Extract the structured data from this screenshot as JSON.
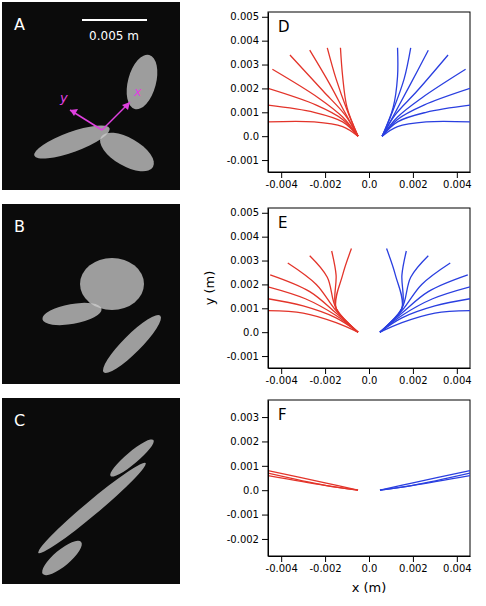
{
  "photos": [
    {
      "label": "A",
      "scale_bar": "0.005 m",
      "axis_labels": [
        "y",
        "x"
      ]
    },
    {
      "label": "B"
    },
    {
      "label": "C"
    }
  ],
  "chart_data": [
    {
      "type": "line",
      "panel": "D",
      "xlim": [
        -0.0046,
        0.0046
      ],
      "ylim": [
        -0.0015,
        0.0052
      ],
      "xticks": [
        -0.004,
        -0.002,
        {
          "value": 0,
          "label": "0.0"
        },
        0.002,
        0.004
      ],
      "yticks": [
        -0.001,
        {
          "value": 0,
          "label": "0.0"
        },
        0.001,
        0.002,
        0.003,
        0.004,
        0.005
      ],
      "series": [
        {
          "color": "#e3342a",
          "x": [
            -0.0005,
            -0.0012,
            -0.0025,
            -0.0046
          ],
          "values": [
            0.0,
            0.0004,
            0.0006,
            0.0006
          ]
        },
        {
          "color": "#e3342a",
          "x": [
            -0.0005,
            -0.0012,
            -0.0025,
            -0.0046
          ],
          "values": [
            0.0,
            0.0006,
            0.001,
            0.0013
          ]
        },
        {
          "color": "#e3342a",
          "x": [
            -0.0005,
            -0.0012,
            -0.0024,
            -0.0046
          ],
          "values": [
            0.0,
            0.0007,
            0.0013,
            0.002
          ]
        },
        {
          "color": "#e3342a",
          "x": [
            -0.0005,
            -0.0012,
            -0.0023,
            -0.0044
          ],
          "values": [
            0.0,
            0.0008,
            0.0016,
            0.0028
          ]
        },
        {
          "color": "#e3342a",
          "x": [
            -0.0005,
            -0.0011,
            -0.0021,
            -0.0036
          ],
          "values": [
            0.0,
            0.0009,
            0.0019,
            0.0034
          ]
        },
        {
          "color": "#e3342a",
          "x": [
            -0.0005,
            -0.0011,
            -0.0018,
            -0.0027
          ],
          "values": [
            0.0,
            0.001,
            0.0022,
            0.0036
          ]
        },
        {
          "color": "#e3342a",
          "x": [
            -0.0005,
            -0.001,
            -0.0015,
            -0.0019
          ],
          "values": [
            0.0,
            0.0011,
            0.0024,
            0.0037
          ]
        },
        {
          "color": "#e3342a",
          "x": [
            -0.0005,
            -0.001,
            -0.0012,
            -0.0013
          ],
          "values": [
            0.0,
            0.0012,
            0.0025,
            0.0037
          ]
        },
        {
          "color": "#2a3fe0",
          "x": [
            0.0006,
            0.0013,
            0.0026,
            0.0046
          ],
          "values": [
            0.0,
            0.0004,
            0.0006,
            0.0006
          ]
        },
        {
          "color": "#2a3fe0",
          "x": [
            0.0006,
            0.0013,
            0.0026,
            0.0046
          ],
          "values": [
            0.0,
            0.0006,
            0.001,
            0.0013
          ]
        },
        {
          "color": "#2a3fe0",
          "x": [
            0.0006,
            0.0013,
            0.0025,
            0.0046
          ],
          "values": [
            0.0,
            0.0007,
            0.0013,
            0.002
          ]
        },
        {
          "color": "#2a3fe0",
          "x": [
            0.0006,
            0.0013,
            0.0024,
            0.0044
          ],
          "values": [
            0.0,
            0.0008,
            0.0016,
            0.0028
          ]
        },
        {
          "color": "#2a3fe0",
          "x": [
            0.0006,
            0.0012,
            0.0022,
            0.0036
          ],
          "values": [
            0.0,
            0.0009,
            0.0019,
            0.0034
          ]
        },
        {
          "color": "#2a3fe0",
          "x": [
            0.0006,
            0.0012,
            0.0019,
            0.0027
          ],
          "values": [
            0.0,
            0.001,
            0.0022,
            0.0036
          ]
        },
        {
          "color": "#2a3fe0",
          "x": [
            0.0006,
            0.0011,
            0.0016,
            0.0019
          ],
          "values": [
            0.0,
            0.0011,
            0.0024,
            0.0037
          ]
        },
        {
          "color": "#2a3fe0",
          "x": [
            0.0006,
            0.0011,
            0.0013,
            0.0013
          ],
          "values": [
            0.0,
            0.0012,
            0.0025,
            0.0037
          ]
        }
      ]
    },
    {
      "type": "line",
      "panel": "E",
      "y_label": "y (m)",
      "xlim": [
        -0.0046,
        0.0046
      ],
      "ylim": [
        -0.0015,
        0.0052
      ],
      "xticks": [
        -0.004,
        -0.002,
        {
          "value": 0,
          "label": "0.0"
        },
        0.002,
        0.004
      ],
      "yticks": [
        -0.001,
        {
          "value": 0,
          "label": "0.0"
        },
        0.001,
        0.002,
        0.003,
        0.004,
        0.005
      ],
      "series": [
        {
          "color": "#e3342a",
          "x": [
            -0.0005,
            -0.0015,
            -0.003,
            -0.0046
          ],
          "values": [
            0.0,
            0.0004,
            0.0008,
            0.0009
          ]
        },
        {
          "color": "#e3342a",
          "x": [
            -0.0005,
            -0.0015,
            -0.003,
            -0.0046
          ],
          "values": [
            0.0,
            0.0006,
            0.0011,
            0.0014
          ]
        },
        {
          "color": "#e3342a",
          "x": [
            -0.0005,
            -0.0015,
            -0.0029,
            -0.0046
          ],
          "values": [
            0.0,
            0.0007,
            0.0014,
            0.0019
          ]
        },
        {
          "color": "#e3342a",
          "x": [
            -0.0005,
            -0.0015,
            -0.0027,
            -0.0045
          ],
          "values": [
            0.0,
            0.0008,
            0.0017,
            0.0024
          ]
        },
        {
          "color": "#e3342a",
          "x": [
            -0.0005,
            -0.0015,
            -0.0024,
            -0.0037
          ],
          "values": [
            0.0,
            0.0009,
            0.002,
            0.0029
          ]
        },
        {
          "color": "#e3342a",
          "x": [
            -0.0005,
            -0.0015,
            -0.0019,
            -0.0027
          ],
          "values": [
            0.0,
            0.001,
            0.0023,
            0.0032
          ]
        },
        {
          "color": "#e3342a",
          "x": [
            -0.0005,
            -0.0015,
            -0.0015,
            -0.0017
          ],
          "values": [
            0.0,
            0.001,
            0.0024,
            0.0034
          ]
        },
        {
          "color": "#e3342a",
          "x": [
            -0.0005,
            -0.0015,
            -0.0012,
            -0.0008
          ],
          "values": [
            0.0,
            0.001,
            0.0024,
            0.0035
          ]
        },
        {
          "color": "#2a3fe0",
          "x": [
            0.0005,
            0.0015,
            0.003,
            0.0046
          ],
          "values": [
            0.0,
            0.0004,
            0.0008,
            0.0009
          ]
        },
        {
          "color": "#2a3fe0",
          "x": [
            0.0005,
            0.0015,
            0.003,
            0.0046
          ],
          "values": [
            0.0,
            0.0006,
            0.0011,
            0.0014
          ]
        },
        {
          "color": "#2a3fe0",
          "x": [
            0.0005,
            0.0015,
            0.0029,
            0.0046
          ],
          "values": [
            0.0,
            0.0007,
            0.0014,
            0.0019
          ]
        },
        {
          "color": "#2a3fe0",
          "x": [
            0.0005,
            0.0015,
            0.0027,
            0.0045
          ],
          "values": [
            0.0,
            0.0008,
            0.0017,
            0.0024
          ]
        },
        {
          "color": "#2a3fe0",
          "x": [
            0.0005,
            0.0015,
            0.0024,
            0.0037
          ],
          "values": [
            0.0,
            0.0009,
            0.002,
            0.0029
          ]
        },
        {
          "color": "#2a3fe0",
          "x": [
            0.0005,
            0.0015,
            0.0019,
            0.0027
          ],
          "values": [
            0.0,
            0.001,
            0.0023,
            0.0032
          ]
        },
        {
          "color": "#2a3fe0",
          "x": [
            0.0005,
            0.0015,
            0.0015,
            0.0017
          ],
          "values": [
            0.0,
            0.001,
            0.0024,
            0.0034
          ]
        },
        {
          "color": "#2a3fe0",
          "x": [
            0.0005,
            0.0015,
            0.0012,
            0.0008
          ],
          "values": [
            0.0,
            0.001,
            0.0024,
            0.0035
          ]
        }
      ]
    },
    {
      "type": "line",
      "panel": "F",
      "x_label": "x (m)",
      "xlim": [
        -0.0046,
        0.0046
      ],
      "ylim": [
        -0.0027,
        0.0037
      ],
      "xticks": [
        -0.004,
        -0.002,
        {
          "value": 0,
          "label": "0.0"
        },
        0.002,
        0.004
      ],
      "yticks": [
        -0.002,
        -0.001,
        {
          "value": 0,
          "label": "0.0"
        },
        0.001,
        0.002,
        0.003
      ],
      "series": [
        {
          "color": "#e3342a",
          "x": [
            -0.0005,
            -0.002,
            -0.0046
          ],
          "values": [
            0.0,
            0.0002,
            0.0006
          ]
        },
        {
          "color": "#e3342a",
          "x": [
            -0.0005,
            -0.002,
            -0.0046
          ],
          "values": [
            0.0,
            0.0002,
            0.0007
          ]
        },
        {
          "color": "#e3342a",
          "x": [
            -0.0005,
            -0.002,
            -0.0046
          ],
          "values": [
            0.0,
            0.0003,
            0.0008
          ]
        },
        {
          "color": "#2a3fe0",
          "x": [
            0.0005,
            0.002,
            0.0046
          ],
          "values": [
            0.0,
            0.0002,
            0.0006
          ]
        },
        {
          "color": "#2a3fe0",
          "x": [
            0.0005,
            0.002,
            0.0046
          ],
          "values": [
            0.0,
            0.0002,
            0.0007
          ]
        },
        {
          "color": "#2a3fe0",
          "x": [
            0.0005,
            0.002,
            0.0046
          ],
          "values": [
            0.0,
            0.0003,
            0.0008
          ]
        }
      ]
    }
  ]
}
